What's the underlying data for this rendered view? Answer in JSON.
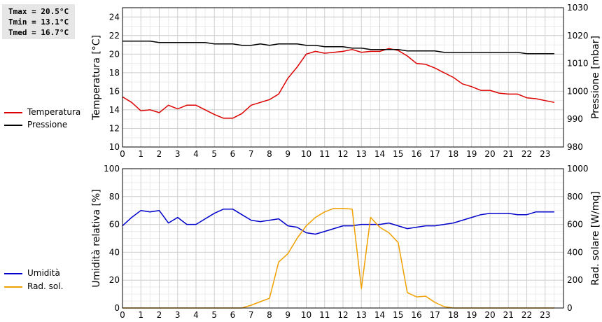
{
  "stats": {
    "tmax": "Tmax = 20.5°C",
    "tmin": "Tmin = 13.1°C",
    "tmed": "Tmed = 16.7°C"
  },
  "legend": {
    "temperature": "Temperatura",
    "pressure": "Pressione",
    "humidity": "Umidità",
    "radiation": "Rad. sol."
  },
  "colors": {
    "temperature": "#dd0000",
    "pressure": "#000000",
    "humidity": "#0000cc",
    "radiation": "#f0a000"
  },
  "chart_data": [
    {
      "type": "line",
      "xlabel": "",
      "ylabel": "Temperatura [°C]",
      "y2label": "Pressione [mbar]",
      "xlim": [
        0,
        24
      ],
      "xticks": [
        "0",
        "1",
        "2",
        "3",
        "4",
        "5",
        "6",
        "7",
        "8",
        "9",
        "10",
        "11",
        "12",
        "13",
        "14",
        "15",
        "16",
        "17",
        "18",
        "19",
        "20",
        "21",
        "22",
        "23"
      ],
      "ylim": [
        10,
        25
      ],
      "yticks": [
        "10",
        "12",
        "14",
        "16",
        "18",
        "20",
        "22",
        "24"
      ],
      "y2lim": [
        980,
        1030
      ],
      "y2ticks": [
        "980",
        "990",
        "1000",
        "1010",
        "1020",
        "1030"
      ],
      "grid": true,
      "series": [
        {
          "name": "Temperatura",
          "axis": "left",
          "x": [
            0,
            0.5,
            1,
            1.5,
            2,
            2.5,
            3,
            3.5,
            4,
            4.5,
            5,
            5.5,
            6,
            6.5,
            7,
            7.5,
            8,
            8.5,
            9,
            9.5,
            10,
            10.5,
            11,
            11.5,
            12,
            12.5,
            13,
            13.5,
            14,
            14.5,
            15,
            15.5,
            16,
            16.5,
            17,
            17.5,
            18,
            18.5,
            19,
            19.5,
            20,
            20.5,
            21,
            21.5,
            22,
            22.5,
            23,
            23.5
          ],
          "y": [
            15.4,
            14.8,
            13.9,
            14.0,
            13.7,
            14.5,
            14.1,
            14.5,
            14.5,
            14.0,
            13.5,
            13.1,
            13.1,
            13.6,
            14.5,
            14.8,
            15.1,
            15.7,
            17.4,
            18.6,
            20.0,
            20.3,
            20.1,
            20.2,
            20.3,
            20.5,
            20.2,
            20.3,
            20.3,
            20.6,
            20.4,
            19.8,
            19.0,
            18.9,
            18.5,
            18.0,
            17.5,
            16.8,
            16.5,
            16.1,
            16.1,
            15.8,
            15.7,
            15.7,
            15.3,
            15.2,
            15.0,
            14.8
          ]
        },
        {
          "name": "Pressione",
          "axis": "right",
          "x": [
            0,
            0.5,
            1,
            1.5,
            2,
            2.5,
            3,
            3.5,
            4,
            4.5,
            5,
            5.5,
            6,
            6.5,
            7,
            7.5,
            8,
            8.5,
            9,
            9.5,
            10,
            10.5,
            11,
            11.5,
            12,
            12.5,
            13,
            13.5,
            14,
            14.5,
            15,
            15.5,
            16,
            16.5,
            17,
            17.5,
            18,
            18.5,
            19,
            19.5,
            20,
            20.5,
            21,
            21.5,
            22,
            22.5,
            23,
            23.5
          ],
          "y": [
            1018,
            1018,
            1018,
            1018,
            1017.5,
            1017.5,
            1017.5,
            1017.5,
            1017.5,
            1017.5,
            1017,
            1017,
            1017,
            1016.5,
            1016.5,
            1017,
            1016.5,
            1017,
            1017,
            1017,
            1016.5,
            1016.5,
            1016,
            1016,
            1016,
            1015.5,
            1015.5,
            1015,
            1015,
            1015,
            1015,
            1014.5,
            1014.5,
            1014.5,
            1014.5,
            1014,
            1014,
            1014,
            1014,
            1014,
            1014,
            1014,
            1014,
            1014,
            1013.5,
            1013.5,
            1013.5,
            1013.5
          ]
        }
      ]
    },
    {
      "type": "line",
      "xlabel": "",
      "ylabel": "Umidità relativa [%]",
      "y2label": "Rad. solare [W/mq]",
      "xlim": [
        0,
        24
      ],
      "xticks": [
        "0",
        "1",
        "2",
        "3",
        "4",
        "5",
        "6",
        "7",
        "8",
        "9",
        "10",
        "11",
        "12",
        "13",
        "14",
        "15",
        "16",
        "17",
        "18",
        "19",
        "20",
        "21",
        "22",
        "23"
      ],
      "ylim": [
        0,
        100
      ],
      "yticks": [
        "0",
        "20",
        "40",
        "60",
        "80",
        "100"
      ],
      "y2lim": [
        0,
        1000
      ],
      "y2ticks": [
        "0",
        "200",
        "400",
        "600",
        "800",
        "1000"
      ],
      "grid": true,
      "series": [
        {
          "name": "Umidità",
          "axis": "left",
          "x": [
            0,
            0.5,
            1,
            1.5,
            2,
            2.5,
            3,
            3.5,
            4,
            4.5,
            5,
            5.5,
            6,
            6.5,
            7,
            7.5,
            8,
            8.5,
            9,
            9.5,
            10,
            10.5,
            11,
            11.5,
            12,
            12.5,
            13,
            13.5,
            14,
            14.5,
            15,
            15.5,
            16,
            16.5,
            17,
            17.5,
            18,
            18.5,
            19,
            19.5,
            20,
            20.5,
            21,
            21.5,
            22,
            22.5,
            23,
            23.5
          ],
          "y": [
            59,
            65,
            70,
            69,
            70,
            61,
            65,
            60,
            60,
            64,
            68,
            71,
            71,
            67,
            63,
            62,
            63,
            64,
            59,
            58,
            54,
            53,
            55,
            57,
            59,
            59,
            60,
            60,
            60,
            61,
            59,
            57,
            58,
            59,
            59,
            60,
            61,
            63,
            65,
            67,
            68,
            68,
            68,
            67,
            67,
            69,
            69,
            69
          ]
        },
        {
          "name": "Rad. sol.",
          "axis": "right",
          "x": [
            0,
            0.5,
            1,
            1.5,
            2,
            2.5,
            3,
            3.5,
            4,
            4.5,
            5,
            5.5,
            6,
            6.5,
            7,
            7.5,
            8,
            8.5,
            9,
            9.5,
            10,
            10.5,
            11,
            11.5,
            12,
            12.5,
            13,
            13.5,
            14,
            14.5,
            15,
            15.5,
            16,
            16.5,
            17,
            17.5,
            18,
            18.5,
            19,
            19.5,
            20,
            20.5,
            21,
            21.5,
            22,
            22.5,
            23,
            23.5
          ],
          "y": [
            0,
            0,
            0,
            0,
            0,
            0,
            0,
            0,
            0,
            0,
            0,
            0,
            0,
            0,
            20,
            45,
            70,
            330,
            390,
            500,
            590,
            650,
            690,
            715,
            715,
            710,
            140,
            650,
            580,
            540,
            470,
            110,
            80,
            85,
            40,
            10,
            0,
            0,
            0,
            0,
            0,
            0,
            0,
            0,
            0,
            0,
            0,
            0
          ]
        }
      ]
    }
  ]
}
